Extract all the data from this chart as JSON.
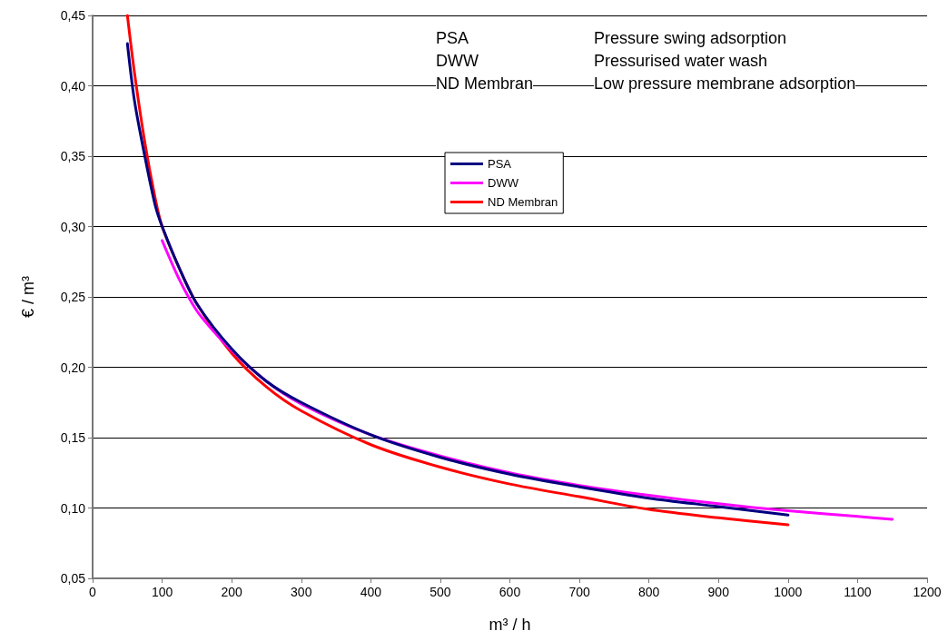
{
  "chart_data": {
    "type": "line",
    "xlabel": "m³ / h",
    "ylabel": "€ / m³",
    "xlim": [
      0,
      1200
    ],
    "xticks": [
      0,
      100,
      200,
      300,
      400,
      500,
      600,
      700,
      800,
      900,
      1000,
      1100,
      1200
    ],
    "ylim": [
      0.05,
      0.45
    ],
    "yticks": [
      {
        "value": 0.05,
        "label": "0,05"
      },
      {
        "value": 0.1,
        "label": "0,10"
      },
      {
        "value": 0.15,
        "label": "0,15"
      },
      {
        "value": 0.2,
        "label": "0,20"
      },
      {
        "value": 0.25,
        "label": "0,25"
      },
      {
        "value": 0.3,
        "label": "0,30"
      },
      {
        "value": 0.35,
        "label": "0,35"
      },
      {
        "value": 0.4,
        "label": "0,40"
      },
      {
        "value": 0.45,
        "label": "0,45"
      }
    ],
    "grid": "y",
    "legend": "top",
    "marker": "none",
    "line_style": "solid",
    "annotations": [
      "PSA",
      "Pressure swing adsorption",
      "DWW",
      "Pressurised water wash",
      "ND Membran",
      "Low pressure membrane adsorption"
    ],
    "series": [
      {
        "name": "PSA",
        "color": "#000080",
        "x": [
          50,
          60,
          75,
          90,
          100,
          125,
          150,
          200,
          250,
          300,
          400,
          500,
          600,
          700,
          800,
          900,
          1000
        ],
        "values": [
          0.43,
          0.39,
          0.35,
          0.315,
          0.3,
          0.27,
          0.245,
          0.213,
          0.19,
          0.175,
          0.152,
          0.136,
          0.124,
          0.115,
          0.107,
          0.101,
          0.095
        ]
      },
      {
        "name": "DWW",
        "color": "#ff00ff",
        "x": [
          100,
          125,
          150,
          175,
          200,
          250,
          300,
          400,
          500,
          600,
          700,
          800,
          900,
          1000,
          1100,
          1150
        ],
        "values": [
          0.29,
          0.262,
          0.24,
          0.225,
          0.212,
          0.19,
          0.174,
          0.152,
          0.137,
          0.125,
          0.116,
          0.109,
          0.103,
          0.098,
          0.094,
          0.092
        ]
      },
      {
        "name": "ND Membran",
        "color": "#ff0000",
        "x": [
          50,
          60,
          75,
          90,
          100,
          125,
          150,
          200,
          250,
          300,
          400,
          500,
          600,
          700,
          800,
          900,
          1000
        ],
        "values": [
          0.45,
          0.41,
          0.36,
          0.32,
          0.3,
          0.27,
          0.245,
          0.21,
          0.186,
          0.169,
          0.145,
          0.129,
          0.117,
          0.108,
          0.099,
          0.093,
          0.088
        ]
      }
    ]
  }
}
